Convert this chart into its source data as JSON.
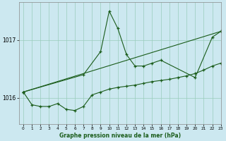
{
  "title": "Graphe pression niveau de la mer (hPa)",
  "background_color": "#cce8f0",
  "grid_color": "#99ccbb",
  "line_color": "#1a5c1a",
  "ylim": [
    1015.55,
    1017.65
  ],
  "xlim": [
    -0.5,
    23
  ],
  "yticks": [
    1016,
    1017
  ],
  "xticks": [
    0,
    1,
    2,
    3,
    4,
    5,
    6,
    7,
    8,
    9,
    10,
    11,
    12,
    13,
    14,
    15,
    16,
    17,
    18,
    19,
    20,
    21,
    22,
    23
  ],
  "series1_x": [
    0,
    1,
    2,
    3,
    4,
    5,
    6,
    7,
    8,
    9,
    10,
    11,
    12,
    13,
    14,
    15,
    16,
    17,
    18,
    19,
    20,
    21,
    22,
    23
  ],
  "series1_y": [
    1016.1,
    1015.88,
    1015.85,
    1015.85,
    1015.9,
    1015.8,
    1015.78,
    1015.85,
    1016.05,
    1016.1,
    1016.15,
    1016.18,
    1016.2,
    1016.22,
    1016.25,
    1016.28,
    1016.3,
    1016.32,
    1016.35,
    1016.38,
    1016.42,
    1016.48,
    1016.55,
    1016.6
  ],
  "series2_x": [
    0,
    7,
    9,
    10,
    11,
    12,
    13,
    14,
    15,
    16,
    20,
    22,
    23
  ],
  "series2_y": [
    1016.1,
    1016.4,
    1016.8,
    1017.5,
    1017.2,
    1016.75,
    1016.55,
    1016.55,
    1016.6,
    1016.65,
    1016.35,
    1017.05,
    1017.15
  ],
  "series3_x": [
    0,
    23
  ],
  "series3_y": [
    1016.1,
    1017.15
  ]
}
